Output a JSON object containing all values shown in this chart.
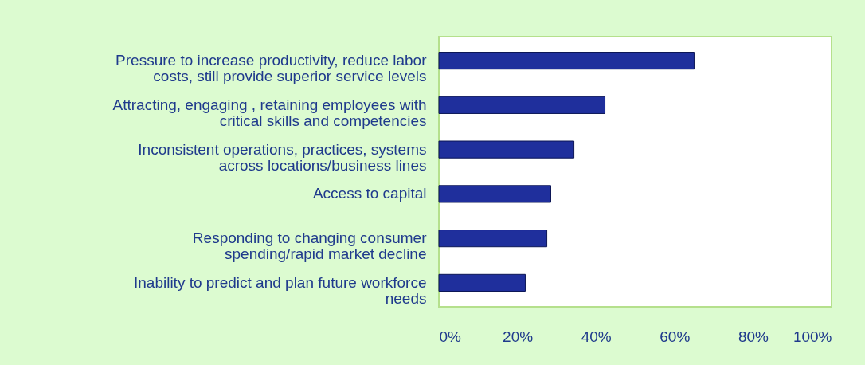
{
  "chart_data": {
    "type": "bar",
    "orientation": "horizontal",
    "categories": [
      "Pressure to increase productivity, reduce labor\ncosts, still provide superior service levels",
      "Attracting, engaging , retaining employees with\ncritical skills and competencies",
      "Inconsistent operations, practices, systems\nacross locations/business lines",
      "Access to capital",
      "Responding to changing consumer\nspending/rapid market decline",
      "Inability to predict and plan future workforce\nneeds"
    ],
    "values": [
      65,
      42.3,
      34.4,
      28.5,
      27.5,
      22
    ],
    "color": "#1f2f9c",
    "xlim": [
      0,
      100
    ],
    "xticks": [
      {
        "value": 0,
        "label": "0%"
      },
      {
        "value": 20,
        "label": "20%"
      },
      {
        "value": 40,
        "label": "40%"
      },
      {
        "value": 60,
        "label": "60%"
      },
      {
        "value": 80,
        "label": "80%"
      },
      {
        "value": 100,
        "label": "100%"
      }
    ],
    "grid": false
  }
}
